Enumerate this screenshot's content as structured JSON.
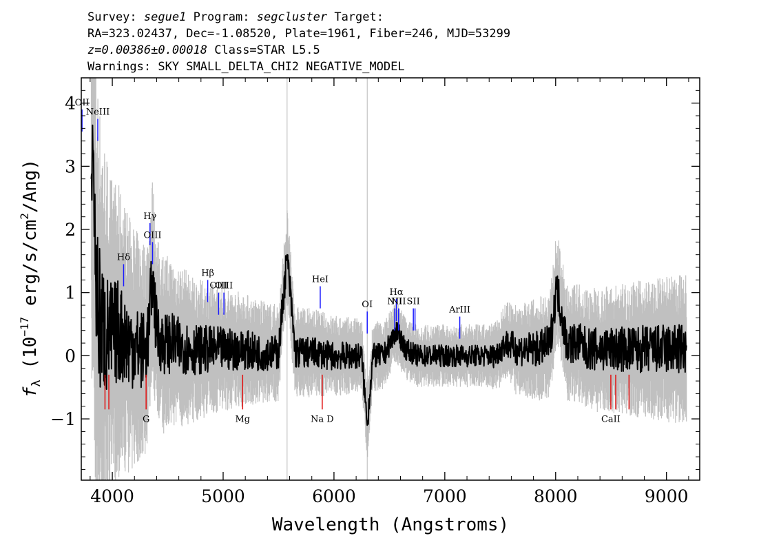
{
  "header": {
    "survey_label": "Survey:",
    "survey": "segue1",
    "program_label": "Program:",
    "program": "segcluster",
    "target_label": "Target:",
    "line2": "RA=323.02437, Dec=-1.08520, Plate=1961, Fiber=246, MJD=53299",
    "z": "z=0.00386±0.00018",
    "class": "Class=STAR L5.5",
    "warnings": "Warnings: SKY SMALL_DELTA_CHI2 NEGATIVE_MODEL"
  },
  "chart_data": {
    "type": "line",
    "title": "",
    "xlabel": "Wavelength (Angstroms)",
    "ylabel_parts": {
      "f": "f",
      "sub": "λ",
      "pre": "(10",
      "exp": "−17",
      "mid": " erg/s/cm",
      "exp2": "2",
      "post": "/Ang)"
    },
    "xlim": [
      3720,
      9300
    ],
    "ylim": [
      -1.97,
      4.4
    ],
    "xticks": [
      4000,
      5000,
      6000,
      7000,
      8000,
      9000
    ],
    "yticks": [
      -1,
      0,
      1,
      2,
      3,
      4
    ],
    "series": [
      {
        "role": "spectrum",
        "color": "#000000",
        "x": [
          3810,
          3830,
          3850,
          3880,
          3920,
          3960,
          4000,
          4050,
          4100,
          4150,
          4200,
          4250,
          4300,
          4330,
          4360,
          4400,
          4450,
          4500,
          4550,
          4600,
          4650,
          4700,
          4750,
          4800,
          4850,
          4900,
          4950,
          5000,
          5100,
          5200,
          5300,
          5400,
          5500,
          5577,
          5650,
          5750,
          5850,
          5950,
          6050,
          6150,
          6250,
          6300,
          6350,
          6450,
          6563,
          6650,
          6750,
          6850,
          6950,
          7050,
          7150,
          7250,
          7350,
          7450,
          7550,
          7650,
          7750,
          7850,
          7950,
          8010,
          8100,
          8200,
          8300,
          8400,
          8500,
          8600,
          8700,
          8800,
          8900,
          9000,
          9100,
          9180
        ],
        "y": [
          2.8,
          3.3,
          1.2,
          0.6,
          0.4,
          0.3,
          0.3,
          0.4,
          0.3,
          0.2,
          0.15,
          0.1,
          0.1,
          0.4,
          1.3,
          0.4,
          0.2,
          0.2,
          0.2,
          0.15,
          0.15,
          0.1,
          0.1,
          0.1,
          0.1,
          0.1,
          0.1,
          0.1,
          0.1,
          0.1,
          0.05,
          0.05,
          0.05,
          1.6,
          0.05,
          0.05,
          0.05,
          0.0,
          0.0,
          0.0,
          0.0,
          -1.1,
          0.0,
          0.0,
          0.4,
          0.1,
          0.0,
          0.0,
          0.0,
          0.0,
          0.0,
          0.0,
          0.0,
          0.0,
          0.2,
          0.1,
          0.1,
          0.1,
          0.2,
          1.1,
          0.2,
          0.2,
          0.1,
          0.1,
          0.1,
          0.1,
          0.1,
          0.1,
          0.1,
          0.1,
          0.1,
          0.1
        ]
      },
      {
        "role": "error",
        "color": "#c0c0c0",
        "x": [
          3810,
          4000,
          4200,
          4400,
          4600,
          4800,
          5000,
          5200,
          5400,
          5600,
          5800,
          6000,
          6200,
          6400,
          6600,
          6800,
          7000,
          7200,
          7400,
          7600,
          7800,
          8000,
          8200,
          8400,
          8600,
          8800,
          9000,
          9180
        ],
        "y": [
          4.0,
          2.5,
          1.9,
          1.5,
          1.3,
          1.1,
          1.0,
          0.9,
          0.8,
          0.75,
          0.7,
          0.65,
          0.6,
          0.55,
          0.5,
          0.5,
          0.5,
          0.5,
          0.5,
          0.7,
          0.8,
          0.9,
          0.95,
          1.0,
          1.05,
          1.1,
          1.15,
          1.2
        ]
      }
    ],
    "emission_lines": [
      {
        "label": "OII",
        "x": 3727
      },
      {
        "label": "NeIII",
        "x": 3869
      },
      {
        "label": "Hδ",
        "x": 4102
      },
      {
        "label": "Hγ",
        "x": 4340
      },
      {
        "label": "OIII",
        "x": 4363
      },
      {
        "label": "Hβ",
        "x": 4861
      },
      {
        "label": "OIII",
        "x": 4959
      },
      {
        "label": "OIII",
        "x": 5007
      },
      {
        "label": "HeI",
        "x": 5876
      },
      {
        "label": "OI",
        "x": 6300
      },
      {
        "label": "NII",
        "x": 6548
      },
      {
        "label": "Hα",
        "x": 6563
      },
      {
        "label": "NII",
        "x": 6583
      },
      {
        "label": "SII",
        "x": 6716
      },
      {
        "label": "SII",
        "x": 6731
      },
      {
        "label": "ArIII",
        "x": 7135
      }
    ],
    "absorption_lines": [
      {
        "label": "",
        "x": 3934
      },
      {
        "label": "",
        "x": 3969
      },
      {
        "label": "G",
        "x": 4305
      },
      {
        "label": "Mg",
        "x": 5176
      },
      {
        "label": "Na D",
        "x": 5894
      },
      {
        "label": "CaII",
        "x": 8498
      },
      {
        "label": "",
        "x": 8542
      },
      {
        "label": "",
        "x": 8662
      }
    ],
    "sky_marker_x": [
      5577,
      6300
    ],
    "grid": false,
    "legend": "none"
  }
}
